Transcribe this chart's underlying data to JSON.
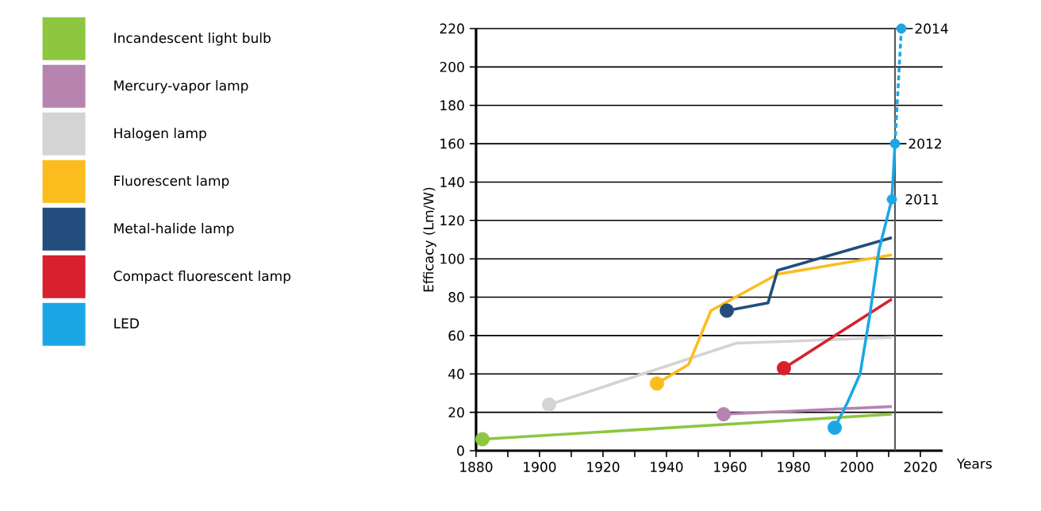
{
  "chart_data": {
    "type": "line",
    "ylabel": "Efficacy (Lm/W)",
    "xlabel": "Years",
    "xlim": [
      1880,
      2027
    ],
    "ylim": [
      0,
      220
    ],
    "xticks": [
      1880,
      1900,
      1920,
      1940,
      1960,
      1980,
      2000,
      2020
    ],
    "yticks": [
      0,
      20,
      40,
      60,
      80,
      100,
      120,
      140,
      160,
      180,
      200,
      220
    ],
    "grid": "y",
    "legend": "left",
    "series": [
      {
        "name": "Incandescent light bulb",
        "color": "#8dc63f",
        "x": [
          1882,
          2011
        ],
        "values": [
          6,
          19
        ]
      },
      {
        "name": "Mercury-vapor lamp",
        "color": "#b784b0",
        "x": [
          1958,
          2011
        ],
        "values": [
          19,
          23
        ]
      },
      {
        "name": "Halogen lamp",
        "color": "#d4d4d4",
        "x": [
          1903,
          1962,
          2011
        ],
        "values": [
          24,
          56,
          59
        ]
      },
      {
        "name": "Fluorescent lamp",
        "color": "#fbbd1e",
        "x": [
          1937,
          1947,
          1954,
          1975,
          2011
        ],
        "values": [
          35,
          45,
          73,
          92,
          102
        ]
      },
      {
        "name": "Metal-halide lamp",
        "color": "#224d7c",
        "x": [
          1959,
          1972,
          1975,
          2011
        ],
        "values": [
          73,
          77,
          94,
          111
        ]
      },
      {
        "name": "Compact fluorescent lamp",
        "color": "#d8202e",
        "x": [
          1977,
          2011
        ],
        "values": [
          43,
          79
        ]
      },
      {
        "name": "LED",
        "color": "#1ba7e6",
        "x": [
          1993,
          1997,
          2001,
          2004,
          2007,
          2011,
          2012
        ],
        "values": [
          12,
          25,
          40,
          70,
          105,
          131,
          160
        ]
      },
      {
        "type": "line",
        "line_style": "dashed",
        "marker": "none",
        "color": "#1ba7e6",
        "x": [
          2012,
          2014
        ],
        "values": [
          160,
          220
        ]
      },
      {
        "type": "scatter",
        "marker": "circle",
        "color": "#1ba7e6",
        "x": [
          2011,
          2012,
          2014
        ],
        "values": [
          131,
          160,
          220
        ]
      },
      {
        "type": "scatter",
        "marker": "circle",
        "color": "#8dc63f",
        "colors": [
          "#8dc63f",
          "#b784b0",
          "#d4d4d4",
          "#fbbd1e",
          "#224d7c",
          "#d8202e",
          "#1ba7e6"
        ],
        "x": [
          1882,
          1958,
          1903,
          1937,
          1959,
          1977,
          1993
        ],
        "values": [
          6,
          19,
          24,
          35,
          73,
          43,
          12
        ]
      }
    ],
    "ref_lines": [
      {
        "axis": "x",
        "value": 2012,
        "color": "#555555"
      }
    ],
    "annotations": [
      {
        "text": "2014",
        "x": 2014,
        "y": 220
      },
      {
        "text": "2012",
        "x": 2012,
        "y": 160
      },
      {
        "text": "2011",
        "x": 2011,
        "y": 131
      }
    ]
  }
}
